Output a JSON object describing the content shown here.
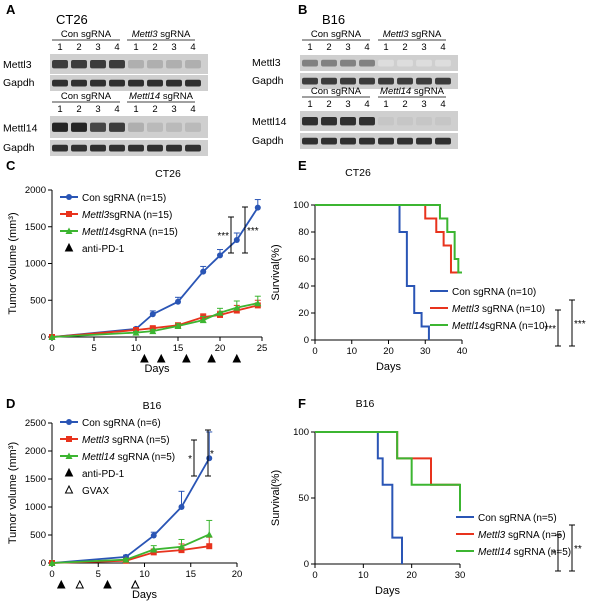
{
  "panels": {
    "A": {
      "letter": "A",
      "cell_line": "CT26",
      "groups": [
        {
          "label": "Con sgRNA",
          "italic_part": "",
          "suffix": ""
        },
        {
          "label": "",
          "italic_part": "Mettl3",
          "suffix": " sgRNA"
        },
        {
          "label": "Con sgRNA",
          "italic_part": "",
          "suffix": ""
        },
        {
          "label": "",
          "italic_part": "Mettl14",
          "suffix": " sgRNA"
        }
      ],
      "lanes": [
        "1",
        "2",
        "3",
        "4"
      ],
      "blot_labels": [
        "Mettl3",
        "Gapdh",
        "Mettl14",
        "Gapdh"
      ]
    },
    "B": {
      "letter": "B",
      "cell_line": "B16",
      "groups": [
        {
          "label": "Con sgRNA",
          "italic_part": "",
          "suffix": ""
        },
        {
          "label": "",
          "italic_part": "Mettl3",
          "suffix": " sgRNA"
        },
        {
          "label": "Con sgRNA",
          "italic_part": "",
          "suffix": ""
        },
        {
          "label": "",
          "italic_part": "Mettl14",
          "suffix": " sgRNA"
        }
      ],
      "lanes": [
        "1",
        "2",
        "3",
        "4"
      ],
      "blot_labels": [
        "Mettl3",
        "Gapdh",
        "Mettl14",
        "Gapdh"
      ]
    }
  },
  "chart_data": [
    {
      "panel": "C",
      "type": "line",
      "title": "CT26",
      "xlabel": "Days",
      "ylabel": "Tumor volume (mm³)",
      "xlim": [
        0,
        25
      ],
      "ylim": [
        0,
        2000
      ],
      "xticks": [
        0,
        5,
        10,
        15,
        20,
        25
      ],
      "yticks": [
        0,
        500,
        1000,
        1500,
        2000
      ],
      "treatment_markers": [
        {
          "label": "anti-PD-1",
          "days": [
            11,
            13,
            16,
            19,
            22
          ]
        }
      ],
      "significance": [
        "***",
        "***"
      ],
      "series": [
        {
          "name": "Con sgRNA (n=15)",
          "color": "#2a55b5",
          "marker": "circle",
          "x": [
            0,
            10,
            12,
            15,
            18,
            20,
            22,
            24.5
          ],
          "y": [
            0,
            110,
            310,
            480,
            890,
            1110,
            1320,
            1760
          ],
          "err": [
            0,
            20,
            45,
            60,
            70,
            80,
            95,
            110
          ]
        },
        {
          "name": "Mettl3sgRNA (n=15)",
          "italic_part": "Mettl3",
          "suffix": "sgRNA (n=15)",
          "color": "#e8331d",
          "marker": "square",
          "x": [
            0,
            10,
            12,
            15,
            18,
            20,
            22,
            24.5
          ],
          "y": [
            0,
            95,
            120,
            160,
            270,
            300,
            360,
            430
          ],
          "err": [
            0,
            15,
            20,
            30,
            45,
            50,
            70,
            70
          ]
        },
        {
          "name": "Mettl14sgRNA (n=15)",
          "italic_part": "Mettl14",
          "suffix": "sgRNA (n=15)",
          "color": "#3cb531",
          "marker": "triangle",
          "x": [
            0,
            10,
            12,
            15,
            18,
            20,
            22,
            24.5
          ],
          "y": [
            0,
            60,
            80,
            150,
            230,
            330,
            400,
            460
          ],
          "err": [
            0,
            15,
            20,
            30,
            50,
            60,
            90,
            95
          ]
        }
      ]
    },
    {
      "panel": "D",
      "type": "line",
      "title": "B16",
      "xlabel": "Days",
      "ylabel": "Tumor volume (mm³)",
      "xlim": [
        0,
        20
      ],
      "ylim": [
        0,
        2500
      ],
      "xticks": [
        0,
        5,
        10,
        15,
        20
      ],
      "yticks": [
        0,
        500,
        1000,
        1500,
        2000,
        2500
      ],
      "treatment_markers": [
        {
          "label": "anti-PD-1",
          "days": [
            1,
            6,
            9
          ]
        },
        {
          "label": "GVAX",
          "days": [
            3,
            9
          ]
        }
      ],
      "significance": [
        "*",
        "*"
      ],
      "series": [
        {
          "name": "Con sgRNA (n=6)",
          "color": "#2a55b5",
          "marker": "circle",
          "x": [
            0,
            8,
            11,
            14,
            17
          ],
          "y": [
            0,
            110,
            490,
            1000,
            1870
          ],
          "err": [
            0,
            30,
            60,
            280,
            470
          ]
        },
        {
          "name": "Mettl3 sgRNA (n=5)",
          "italic_part": "Mettl3",
          "suffix": " sgRNA (n=5)",
          "color": "#e8331d",
          "marker": "square",
          "x": [
            0,
            8,
            11,
            14,
            17
          ],
          "y": [
            0,
            40,
            190,
            230,
            300
          ],
          "err": [
            0,
            20,
            60,
            110,
            160
          ]
        },
        {
          "name": "Mettl14 sgRNA (n=5)",
          "italic_part": "Mettl14",
          "suffix": " sgRNA (n=5)",
          "color": "#3cb531",
          "marker": "triangle",
          "x": [
            0,
            8,
            11,
            14,
            17
          ],
          "y": [
            0,
            60,
            240,
            290,
            510
          ],
          "err": [
            0,
            20,
            70,
            130,
            250
          ]
        }
      ]
    },
    {
      "panel": "E",
      "type": "line",
      "subtype": "survival",
      "title": "CT26",
      "xlabel": "Days",
      "ylabel": "Survival(%)",
      "xlim": [
        0,
        40
      ],
      "ylim": [
        0,
        100
      ],
      "xticks": [
        0,
        10,
        20,
        30,
        40
      ],
      "yticks": [
        0,
        20,
        40,
        60,
        80,
        100
      ],
      "significance": [
        "***",
        "***"
      ],
      "series": [
        {
          "name": "Con sgRNA (n=10)",
          "color": "#2a55b5",
          "x": [
            0,
            23,
            23,
            25,
            25,
            27,
            27,
            29,
            29,
            31,
            31
          ],
          "y": [
            100,
            100,
            80,
            80,
            40,
            40,
            20,
            20,
            10,
            10,
            0
          ]
        },
        {
          "name": "Mettl3 sgRNA (n=10)",
          "italic_part": "Mettl3",
          "suffix": " sgRNA (n=10)",
          "color": "#e8331d",
          "x": [
            0,
            30,
            30,
            33,
            33,
            35,
            35,
            37,
            37,
            40
          ],
          "y": [
            100,
            100,
            90,
            90,
            80,
            80,
            70,
            70,
            50,
            50
          ]
        },
        {
          "name": "Mettl14sgRNA (n=10)",
          "italic_part": "Mettl14",
          "suffix": "sgRNA (n=10)",
          "color": "#3cb531",
          "x": [
            0,
            34,
            34,
            36,
            36,
            38,
            38,
            39,
            39,
            40
          ],
          "y": [
            100,
            100,
            90,
            90,
            80,
            80,
            60,
            60,
            50,
            50
          ]
        }
      ]
    },
    {
      "panel": "F",
      "type": "line",
      "subtype": "survival",
      "title": "B16",
      "xlabel": "Days",
      "ylabel": "Survival(%)",
      "xlim": [
        0,
        30
      ],
      "ylim": [
        0,
        100
      ],
      "xticks": [
        0,
        10,
        20,
        30
      ],
      "yticks": [
        0,
        50,
        100
      ],
      "significance": [
        "*",
        "**"
      ],
      "series": [
        {
          "name": "Con sgRNA (n=5)",
          "color": "#2a55b5",
          "x": [
            0,
            13,
            13,
            14,
            14,
            16,
            16,
            17,
            17,
            18,
            18
          ],
          "y": [
            100,
            100,
            80,
            80,
            60,
            60,
            20,
            20,
            20,
            20,
            0
          ]
        },
        {
          "name": "Mettl3 sgRNA (n=5)",
          "italic_part": "Mettl3",
          "suffix": " sgRNA (n=5)",
          "color": "#e8331d",
          "x": [
            0,
            17,
            17,
            20,
            20,
            24,
            24,
            30
          ],
          "y": [
            100,
            100,
            80,
            80,
            80,
            80,
            60,
            60
          ]
        },
        {
          "name": "Mettl14 sgRNA (n=5)",
          "italic_part": "Mettl14",
          "suffix": " sgRNA (n=5)",
          "color": "#3cb531",
          "x": [
            0,
            17,
            17,
            20,
            20,
            30,
            30
          ],
          "y": [
            100,
            100,
            80,
            80,
            60,
            60,
            40
          ]
        }
      ]
    }
  ]
}
